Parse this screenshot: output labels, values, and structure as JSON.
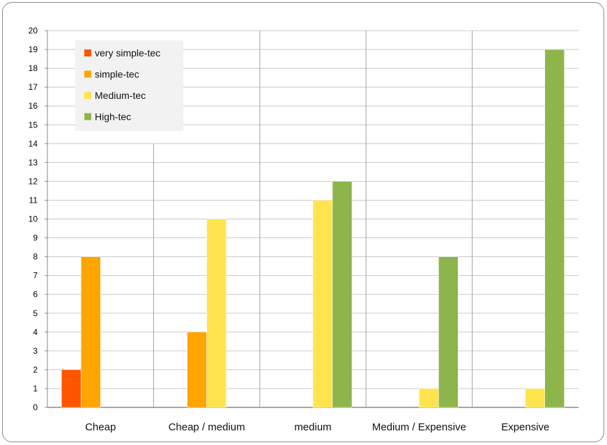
{
  "chart_data": {
    "type": "bar",
    "title": "",
    "xlabel": "",
    "ylabel": "",
    "categories": [
      "Cheap",
      "Cheap / medium",
      "medium",
      "Medium / Expensive",
      "Expensive"
    ],
    "series": [
      {
        "name": "very simple-tec",
        "color": "#FF5500",
        "values": [
          2,
          0,
          0,
          0,
          0
        ]
      },
      {
        "name": "simple-tec",
        "color": "#FFA500",
        "values": [
          8,
          4,
          0,
          0,
          0
        ]
      },
      {
        "name": "Medium-tec",
        "color": "#FFE44D",
        "values": [
          0,
          10,
          11,
          1,
          1
        ]
      },
      {
        "name": "High-tec",
        "color": "#8DB54B",
        "values": [
          0,
          0,
          12,
          8,
          19
        ]
      }
    ],
    "ylim": [
      0,
      20
    ],
    "yticks": [
      "0",
      "1",
      "2",
      "3",
      "4",
      "5",
      "6",
      "7",
      "8",
      "9",
      "10",
      "11",
      "12",
      "13",
      "14",
      "15",
      "16",
      "17",
      "18",
      "19",
      "20"
    ],
    "grid": true,
    "legend_position": "top-left inside"
  }
}
